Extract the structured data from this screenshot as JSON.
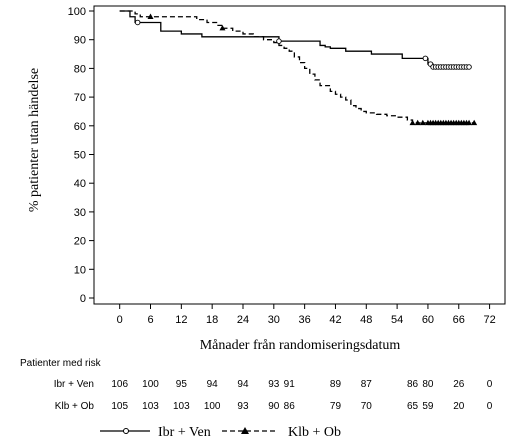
{
  "chart_data": {
    "type": "line",
    "xlabel": "Månader från randomiseringsdatum",
    "ylabel": "% patienter utan händelse",
    "xlim": [
      -5,
      75
    ],
    "ylim": [
      0,
      100
    ],
    "x_ticks": [
      0,
      6,
      12,
      18,
      24,
      30,
      36,
      42,
      48,
      54,
      60,
      66,
      72
    ],
    "y_ticks": [
      0,
      10,
      20,
      30,
      40,
      50,
      60,
      70,
      80,
      90,
      100
    ],
    "grid": false,
    "legend_position": "bottom",
    "series": [
      {
        "name": "Ibr + Ven",
        "line_style": "solid",
        "marker": "circle",
        "color": "#000000",
        "steps": [
          [
            0,
            100
          ],
          [
            2,
            98
          ],
          [
            3,
            96
          ],
          [
            7,
            96
          ],
          [
            8,
            93
          ],
          [
            11,
            93
          ],
          [
            12,
            92
          ],
          [
            15,
            92
          ],
          [
            16,
            91
          ],
          [
            30,
            91
          ],
          [
            31,
            89.5
          ],
          [
            38,
            89.5
          ],
          [
            39,
            88
          ],
          [
            40,
            87.5
          ],
          [
            41,
            87
          ],
          [
            44,
            86
          ],
          [
            48,
            86
          ],
          [
            49,
            85
          ],
          [
            54,
            85
          ],
          [
            55,
            83.5
          ],
          [
            59,
            83.5
          ],
          [
            60,
            81.5
          ],
          [
            61,
            80.5
          ],
          [
            68,
            80.5
          ]
        ],
        "censor_x": [
          3.5,
          31,
          59.5,
          60.5,
          61,
          61.5,
          62,
          62.5,
          63,
          63.5,
          64,
          64.5,
          65,
          65.5,
          66,
          66.5,
          67,
          67.5,
          68
        ]
      },
      {
        "name": "Klb + Ob",
        "line_style": "dashed",
        "marker": "triangle",
        "color": "#000000",
        "steps": [
          [
            0,
            100
          ],
          [
            3,
            99
          ],
          [
            4,
            98
          ],
          [
            14,
            98
          ],
          [
            15,
            97
          ],
          [
            17,
            96
          ],
          [
            19,
            95
          ],
          [
            20,
            94
          ],
          [
            22,
            93
          ],
          [
            24,
            92
          ],
          [
            26,
            91
          ],
          [
            28,
            90
          ],
          [
            30,
            89
          ],
          [
            31,
            88
          ],
          [
            32,
            87
          ],
          [
            33,
            86
          ],
          [
            34,
            84
          ],
          [
            35,
            82
          ],
          [
            36,
            80
          ],
          [
            37,
            78
          ],
          [
            38,
            76
          ],
          [
            39,
            74
          ],
          [
            41,
            72
          ],
          [
            42,
            71
          ],
          [
            43,
            70
          ],
          [
            44,
            69
          ],
          [
            45,
            67
          ],
          [
            46,
            66
          ],
          [
            47,
            65
          ],
          [
            48,
            64.5
          ],
          [
            50,
            64
          ],
          [
            52,
            63.5
          ],
          [
            54,
            63
          ],
          [
            56,
            62
          ],
          [
            57,
            61
          ],
          [
            69,
            61
          ]
        ],
        "censor_x": [
          6,
          20,
          57,
          58,
          59,
          60,
          60.5,
          61,
          61.5,
          62,
          62.5,
          63,
          63.5,
          64,
          64.5,
          65,
          65.5,
          66,
          66.5,
          67,
          67.5,
          68,
          69
        ]
      }
    ],
    "risk_table": {
      "title": "Patienter med risk",
      "time_points": [
        0,
        6,
        12,
        18,
        24,
        30,
        33,
        42,
        48,
        57,
        60,
        66,
        72
      ],
      "rows": [
        {
          "label": "Ibr + Ven",
          "values": [
            "106",
            "100",
            "95",
            "94",
            "94",
            "93",
            "91",
            "89",
            "87",
            "86",
            "80",
            "26",
            "0"
          ]
        },
        {
          "label": "Klb + Ob",
          "values": [
            "105",
            "103",
            "103",
            "100",
            "93",
            "90",
            "86",
            "79",
            "70",
            "65",
            "59",
            "20",
            "0"
          ]
        }
      ]
    }
  }
}
